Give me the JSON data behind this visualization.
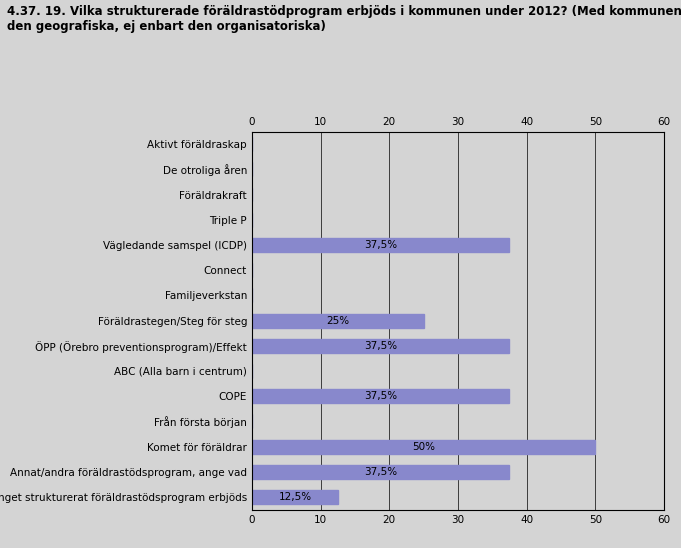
{
  "title_line1": "4.37. 19. Vilka strukturerade föräldrastödprogram erbjöds i kommunen under 2012? (Med kommunen avses",
  "title_line2": "den geografiska, ej enbart den organisatoriska)",
  "categories": [
    "Aktivt föräldraskap",
    "De otroliga åren",
    "Föräldrakraft",
    "Triple P",
    "Vägledande samspel (ICDP)",
    "Connect",
    "Familjeverkstan",
    "Föräldrastegen/Steg för steg",
    "ÖPP (Örebro preventionsprogram)/Effekt",
    "ABC (Alla barn i centrum)",
    "COPE",
    "Från första början",
    "Komet för föräldrar",
    "Annat/andra föräldrastödsprogram, ange vad",
    "Inget strukturerat föräldrastödsprogram erbjöds"
  ],
  "values": [
    0,
    0,
    0,
    0,
    37.5,
    0,
    0,
    25,
    37.5,
    0,
    37.5,
    0,
    50,
    37.5,
    12.5
  ],
  "labels": [
    "",
    "",
    "",
    "",
    "37,5%",
    "",
    "",
    "25%",
    "37,5%",
    "",
    "37,5%",
    "",
    "50%",
    "37,5%",
    "12,5%"
  ],
  "bar_color": "#8888cc",
  "bg_color": "#d4d4d4",
  "plot_bg_color": "#d4d4d4",
  "xlim": [
    0,
    60
  ],
  "xticks": [
    0,
    10,
    20,
    30,
    40,
    50,
    60
  ],
  "title_fontsize": 8.5,
  "tick_fontsize": 7.5,
  "label_fontsize": 7.5,
  "bar_height": 0.55
}
